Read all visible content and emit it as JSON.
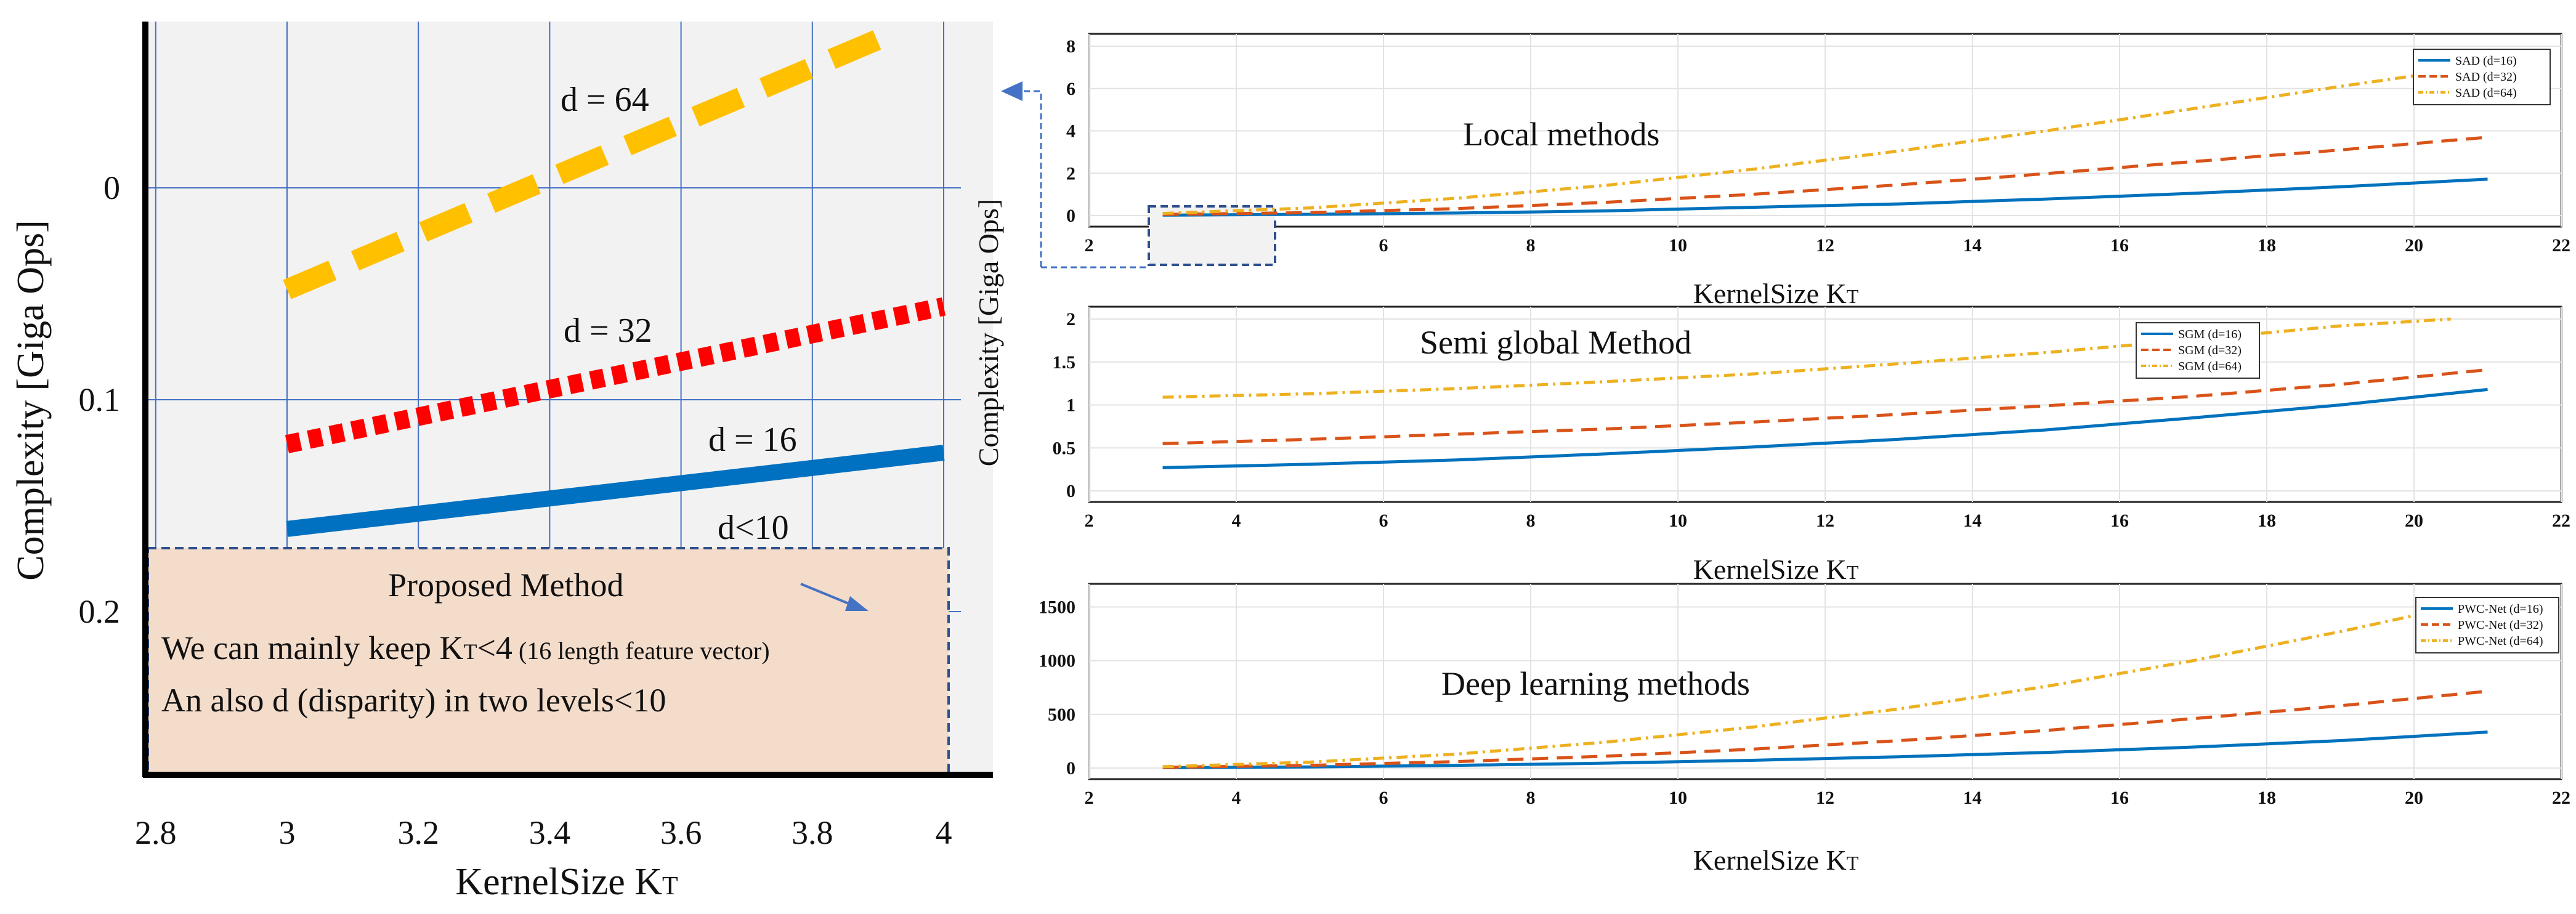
{
  "colors": {
    "blue": "#0070c0",
    "red": "#ff0000",
    "yellow": "#ffc000",
    "s_blue": "#0072bd",
    "s_orange": "#d95319",
    "s_yellow": "#edb120",
    "box_fill": "#f4dccb",
    "box_border": "#2e4f8f",
    "grid": "#4472c4",
    "zoom_bg": "#f2f2f2"
  },
  "chart_data": [
    {
      "id": "zoom",
      "type": "line",
      "title": "",
      "xlabel": "KernelSize K",
      "xlabel_sub": "T",
      "ylabel": "Complexity [Giga Ops]",
      "xlim": [
        2.8,
        4.0
      ],
      "ylim": [
        0,
        0.2
      ],
      "y_axis_inverted": true,
      "xticks": [
        "2.8",
        "3",
        "3.2",
        "3.4",
        "3.6",
        "3.8",
        "4"
      ],
      "yticks": [
        "0",
        "0.1",
        "0.2"
      ],
      "series": [
        {
          "name": "d = 64",
          "x": [
            3,
            3.9
          ],
          "y": [
            0.048,
            -0.07
          ],
          "style": "dashed",
          "color_key": "yellow"
        },
        {
          "name": "d = 32",
          "x": [
            3,
            4.0
          ],
          "y": [
            0.121,
            0.056
          ],
          "style": "dotted",
          "color_key": "red"
        },
        {
          "name": "d = 16",
          "x": [
            3,
            4.0
          ],
          "y": [
            0.161,
            0.125
          ],
          "style": "solid",
          "color_key": "blue"
        }
      ],
      "annotations": [
        "d = 64",
        "d = 32",
        "d = 16",
        "d<10"
      ],
      "box": {
        "title": "Proposed Method",
        "line1": "We can mainly keep K",
        "line1_sub": "T",
        "line1_mid": "<4",
        "line1_note": " (16 length feature vector)",
        "line2": "An also d (disparity) in two levels<10"
      }
    },
    {
      "id": "local",
      "type": "line",
      "title": "Local methods",
      "xlabel": "KernelSize K",
      "xlabel_sub": "T",
      "xlim": [
        2,
        22
      ],
      "ylim": [
        0,
        8
      ],
      "xticks": [
        "2",
        "4",
        "6",
        "8",
        "10",
        "12",
        "14",
        "16",
        "18",
        "20",
        "22"
      ],
      "yticks": [
        "0",
        "2",
        "4",
        "6",
        "8"
      ],
      "series": [
        {
          "name": "SAD (d=16)",
          "x": [
            3,
            5,
            7,
            9,
            11,
            13,
            15,
            17,
            19,
            21
          ],
          "y": [
            0.02,
            0.06,
            0.12,
            0.22,
            0.39,
            0.55,
            0.78,
            1.05,
            1.36,
            1.72
          ],
          "color_key": "s_blue",
          "style": "solid"
        },
        {
          "name": "SAD (d=32)",
          "x": [
            3,
            5,
            7,
            9,
            11,
            13,
            15,
            17,
            19,
            21
          ],
          "y": [
            0.05,
            0.14,
            0.33,
            0.62,
            1.0,
            1.45,
            1.98,
            2.55,
            3.1,
            3.7
          ],
          "color_key": "s_orange",
          "style": "dashed"
        },
        {
          "name": "SAD (d=64)",
          "x": [
            3,
            5,
            7,
            9,
            11,
            13,
            15,
            17,
            19,
            21
          ],
          "y": [
            0.1,
            0.36,
            0.82,
            1.42,
            2.18,
            3.05,
            4.0,
            5.05,
            6.1,
            7.1
          ],
          "color_key": "s_yellow",
          "style": "dashdot"
        }
      ]
    },
    {
      "id": "sgm",
      "type": "line",
      "title": "Semi global Method",
      "xlabel": "KernelSize K",
      "xlabel_sub": "T",
      "ylabel": "Complexity [Giga Ops]",
      "xlim": [
        2,
        22
      ],
      "ylim": [
        0,
        2
      ],
      "xticks": [
        "2",
        "4",
        "6",
        "8",
        "10",
        "12",
        "14",
        "16",
        "18",
        "20",
        "22"
      ],
      "yticks": [
        "0",
        "0.5",
        "1",
        "1.5",
        "2"
      ],
      "series": [
        {
          "name": "SGM (d=16)",
          "x": [
            3,
            5,
            7,
            9,
            11,
            13,
            15,
            17,
            19,
            21
          ],
          "y": [
            0.27,
            0.31,
            0.36,
            0.43,
            0.51,
            0.6,
            0.71,
            0.85,
            1.0,
            1.18
          ],
          "color_key": "s_blue",
          "style": "solid"
        },
        {
          "name": "SGM (d=32)",
          "x": [
            3,
            5,
            7,
            9,
            11,
            13,
            15,
            17,
            19,
            21
          ],
          "y": [
            0.55,
            0.6,
            0.66,
            0.72,
            0.8,
            0.89,
            0.99,
            1.1,
            1.24,
            1.41
          ],
          "color_key": "s_orange",
          "style": "dashed"
        },
        {
          "name": "SGM (d=64)",
          "x": [
            3,
            5,
            7,
            9,
            11,
            13,
            15,
            17,
            19,
            20.5
          ],
          "y": [
            1.09,
            1.13,
            1.19,
            1.27,
            1.36,
            1.48,
            1.61,
            1.76,
            1.92,
            2.0
          ],
          "color_key": "s_yellow",
          "style": "dashdot"
        }
      ]
    },
    {
      "id": "dl",
      "type": "line",
      "title": "Deep learning methods",
      "xlabel": "KernelSize K",
      "xlabel_sub": "T",
      "xlim": [
        2,
        22
      ],
      "ylim": [
        0,
        1600
      ],
      "xticks": [
        "2",
        "4",
        "6",
        "8",
        "10",
        "12",
        "14",
        "16",
        "18",
        "20",
        "22"
      ],
      "yticks": [
        "0",
        "500",
        "1000",
        "1500"
      ],
      "series": [
        {
          "name": "PWC-Net (d=16)",
          "x": [
            3,
            5,
            7,
            9,
            11,
            13,
            15,
            17,
            19,
            21
          ],
          "y": [
            3,
            10,
            25,
            45,
            72,
            105,
            145,
            195,
            255,
            335
          ],
          "color_key": "s_blue",
          "style": "solid"
        },
        {
          "name": "PWC-Net (d=32)",
          "x": [
            3,
            5,
            7,
            9,
            11,
            13,
            15,
            17,
            19,
            21
          ],
          "y": [
            6,
            25,
            60,
            110,
            175,
            255,
            350,
            460,
            580,
            715
          ],
          "color_key": "s_orange",
          "style": "dashed"
        },
        {
          "name": "PWC-Net (d=64)",
          "x": [
            3,
            5,
            7,
            9,
            11,
            13,
            15,
            17,
            19,
            21
          ],
          "y": [
            12,
            55,
            130,
            240,
            380,
            550,
            760,
            1000,
            1270,
            1570
          ],
          "color_key": "s_yellow",
          "style": "dashdot"
        }
      ]
    }
  ]
}
